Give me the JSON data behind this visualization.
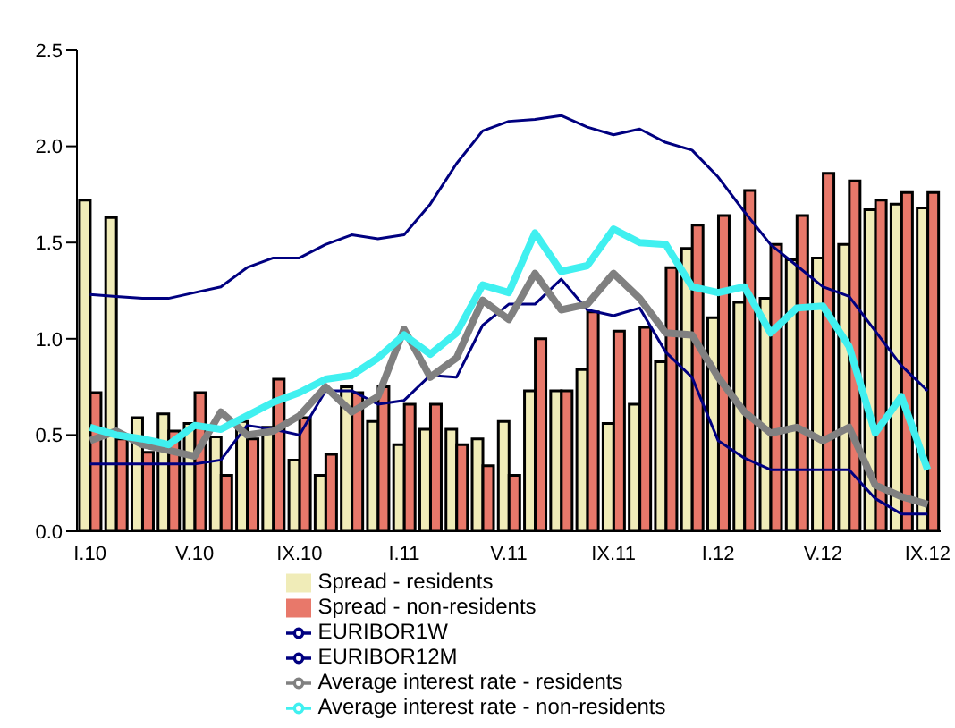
{
  "chart_data": {
    "type": "bar",
    "categories": [
      "I.10",
      null,
      null,
      null,
      "V.10",
      null,
      null,
      null,
      "IX.10",
      null,
      null,
      null,
      "I.11",
      null,
      null,
      null,
      "V.11",
      null,
      null,
      null,
      "IX.11",
      null,
      null,
      null,
      "I.12",
      null,
      null,
      null,
      "V.12",
      null,
      null,
      null,
      "IX.12"
    ],
    "series": [
      {
        "name": "Spread - residents",
        "color": "#f0ecb8",
        "values": [
          1.72,
          1.63,
          0.59,
          0.61,
          0.56,
          0.49,
          0.57,
          0.54,
          0.37,
          0.29,
          0.75,
          0.57,
          0.45,
          0.53,
          0.53,
          0.48,
          0.57,
          0.73,
          0.73,
          0.84,
          0.56,
          0.66,
          0.88,
          1.47,
          1.11,
          1.19,
          1.21,
          1.41,
          1.42,
          1.49,
          1.67,
          1.7,
          1.68
        ]
      },
      {
        "name": "Spread - non-residents",
        "color": "#e8786a",
        "values": [
          0.72,
          0.48,
          0.41,
          0.52,
          0.72,
          0.29,
          0.48,
          0.79,
          0.59,
          0.4,
          0.72,
          0.75,
          0.66,
          0.66,
          0.45,
          0.34,
          0.29,
          1.0,
          0.73,
          1.14,
          1.04,
          1.06,
          1.37,
          1.59,
          1.64,
          1.77,
          1.49,
          1.64,
          1.86,
          1.82,
          1.72,
          1.76,
          1.76
        ]
      },
      {
        "name": "EURIBOR1W",
        "type": "line",
        "color": "#000080",
        "values": [
          0.35,
          0.35,
          0.35,
          0.35,
          0.35,
          0.37,
          0.55,
          0.53,
          0.5,
          0.73,
          0.73,
          0.66,
          0.68,
          0.81,
          0.8,
          1.07,
          1.18,
          1.18,
          1.31,
          1.15,
          1.12,
          1.16,
          0.93,
          0.8,
          0.47,
          0.38,
          0.32,
          0.32,
          0.32,
          0.32,
          0.17,
          0.09,
          0.09
        ]
      },
      {
        "name": "EURIBOR12M",
        "type": "line",
        "color": "#000080",
        "values": [
          1.23,
          1.22,
          1.21,
          1.21,
          1.24,
          1.27,
          1.37,
          1.42,
          1.42,
          1.49,
          1.54,
          1.52,
          1.54,
          1.7,
          1.91,
          2.08,
          2.13,
          2.14,
          2.16,
          2.1,
          2.06,
          2.09,
          2.02,
          1.98,
          1.84,
          1.66,
          1.49,
          1.38,
          1.27,
          1.22,
          1.04,
          0.86,
          0.73
        ]
      },
      {
        "name": "Average interest rate - residents",
        "type": "line",
        "color": "#808080",
        "values": [
          0.47,
          0.52,
          0.45,
          0.42,
          0.39,
          0.62,
          0.5,
          0.52,
          0.6,
          0.75,
          0.62,
          0.7,
          1.05,
          0.8,
          0.9,
          1.2,
          1.1,
          1.34,
          1.15,
          1.18,
          1.34,
          1.21,
          1.03,
          1.02,
          0.8,
          0.62,
          0.51,
          0.54,
          0.47,
          0.54,
          0.24,
          0.18,
          0.14
        ]
      },
      {
        "name": "Average interest rate - non-residents",
        "type": "line",
        "color": "#40f0f0",
        "values": [
          0.54,
          0.5,
          0.48,
          0.45,
          0.55,
          0.53,
          0.6,
          0.67,
          0.72,
          0.79,
          0.81,
          0.9,
          1.02,
          0.92,
          1.03,
          1.28,
          1.24,
          1.55,
          1.35,
          1.38,
          1.57,
          1.5,
          1.49,
          1.27,
          1.24,
          1.27,
          1.03,
          1.16,
          1.17,
          0.96,
          0.51,
          0.7,
          0.32
        ]
      }
    ],
    "ylim": [
      0,
      2.5
    ],
    "yticks": [
      {
        "value": 0,
        "label": "0.0"
      },
      {
        "value": 0.5,
        "label": "0.5"
      },
      {
        "value": 1,
        "label": "1.0"
      },
      {
        "value": 1.5,
        "label": "1.5"
      },
      {
        "value": 2,
        "label": "2.0"
      },
      {
        "value": 2.5,
        "label": "2.5"
      }
    ],
    "grid": false,
    "legend": "bottom",
    "marker": "none"
  }
}
